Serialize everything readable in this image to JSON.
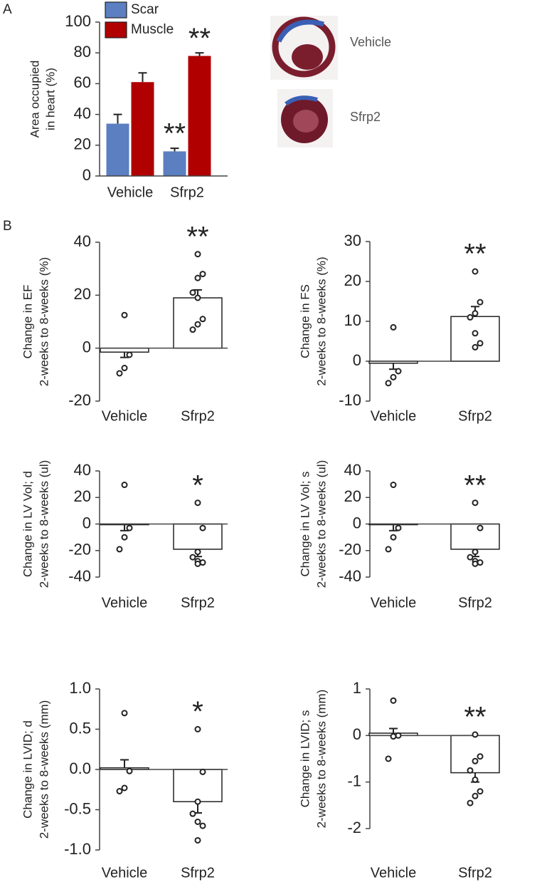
{
  "panel_labels": [
    "A",
    "B"
  ],
  "images": [
    {
      "label": "Vehicle"
    },
    {
      "label": "Sfrp2"
    }
  ],
  "chart_data": [
    {
      "type": "bar",
      "ylabel": [
        "Area occupied",
        "in heart (%)"
      ],
      "categories": [
        "Vehicle",
        "Sfrp2"
      ],
      "series": [
        {
          "name": "Scar",
          "color": "#5b7fc0",
          "values": [
            34,
            16
          ],
          "errors": [
            6,
            2
          ],
          "annotations": [
            null,
            "**"
          ]
        },
        {
          "name": "Muscle",
          "color": "#b00000",
          "values": [
            61,
            78
          ],
          "errors": [
            6,
            2
          ],
          "annotations": [
            null,
            "**"
          ]
        }
      ],
      "ylim": [
        0,
        100
      ],
      "yticks": [
        0,
        20,
        40,
        60,
        80,
        100
      ]
    },
    {
      "type": "bar",
      "ylabel": [
        "Change in EF",
        "2-weeks to 8-weeks (%)"
      ],
      "categories": [
        "Vehicle",
        "Sfrp2"
      ],
      "values": [
        -1.5,
        19
      ],
      "errors": [
        2,
        3
      ],
      "annotations": [
        null,
        "**"
      ],
      "points": [
        [
          12.5,
          -2.5,
          -7.5,
          -9.5
        ],
        [
          35.5,
          28,
          26.5,
          21,
          19,
          11,
          9,
          7
        ]
      ],
      "ylim": [
        -20,
        40
      ],
      "yticks": [
        -20,
        0,
        20,
        40
      ]
    },
    {
      "type": "bar",
      "ylabel": [
        "Change in FS",
        "2-weeks to 8-weeks (%)"
      ],
      "categories": [
        "Vehicle",
        "Sfrp2"
      ],
      "values": [
        -0.5,
        11.2
      ],
      "errors": [
        1.5,
        2.5
      ],
      "annotations": [
        null,
        "**"
      ],
      "points": [
        [
          8.5,
          -2.5,
          -4,
          -5.5
        ],
        [
          22.5,
          14.8,
          12,
          11,
          7,
          4.5,
          3.5
        ]
      ],
      "ylim": [
        -10,
        30
      ],
      "yticks": [
        -10,
        0,
        10,
        20,
        30
      ]
    },
    {
      "type": "bar",
      "ylabel": [
        "Change in LV Vol; d",
        "2-weeks to 8-weeks (ul)"
      ],
      "categories": [
        "Vehicle",
        "Sfrp2"
      ],
      "values": [
        -0.5,
        -19
      ],
      "errors": [
        4.5,
        5.5
      ],
      "annotations": [
        null,
        "*"
      ],
      "points": [
        [
          29.5,
          -3,
          -10,
          -19
        ],
        [
          16,
          -3,
          -21,
          -25,
          -28,
          -29,
          -30
        ]
      ],
      "ylim": [
        -40,
        40
      ],
      "yticks": [
        -40,
        -20,
        0,
        20,
        40
      ]
    },
    {
      "type": "bar",
      "ylabel": [
        "Change in LV Vol; s",
        "2-weeks to 8-weeks (ul)"
      ],
      "categories": [
        "Vehicle",
        "Sfrp2"
      ],
      "values": [
        -0.5,
        -19
      ],
      "errors": [
        4.5,
        5.5
      ],
      "annotations": [
        null,
        "**"
      ],
      "points": [
        [
          29.5,
          -3,
          -10,
          -19
        ],
        [
          16,
          -3,
          -21,
          -25,
          -28,
          -29,
          -30
        ]
      ],
      "ylim": [
        -40,
        40
      ],
      "yticks": [
        -40,
        -20,
        0,
        20,
        40
      ]
    },
    {
      "type": "bar",
      "ylabel": [
        "Change in LVID; d",
        "2-weeks to 8-weeks (mm)"
      ],
      "categories": [
        "Vehicle",
        "Sfrp2"
      ],
      "values": [
        0.02,
        -0.4
      ],
      "errors": [
        0.1,
        0.14
      ],
      "annotations": [
        null,
        "*"
      ],
      "points": [
        [
          0.7,
          -0.02,
          -0.23,
          -0.27
        ],
        [
          0.5,
          -0.03,
          -0.4,
          -0.55,
          -0.65,
          -0.7,
          -0.88
        ]
      ],
      "ylim": [
        -1,
        1
      ],
      "yticks": [
        {
          "value": -1,
          "label": "-1.0"
        },
        {
          "value": -0.5,
          "label": "-0.5"
        },
        {
          "value": 0,
          "label": "0.0"
        },
        {
          "value": 0.5,
          "label": "0.5"
        },
        {
          "value": 1,
          "label": "1.0"
        }
      ]
    },
    {
      "type": "bar",
      "ylabel": [
        "Change in LVID; s",
        "2-weeks to 8-weeks (mm)"
      ],
      "categories": [
        "Vehicle",
        "Sfrp2"
      ],
      "values": [
        0.05,
        -0.8
      ],
      "errors": [
        0.1,
        0.2
      ],
      "annotations": [
        null,
        "**"
      ],
      "points": [
        [
          0.75,
          0,
          -0.02,
          -0.5
        ],
        [
          0.02,
          -0.45,
          -0.55,
          -0.75,
          -0.95,
          -1.2,
          -1.3,
          -1.45
        ]
      ],
      "ylim": [
        -2,
        1
      ],
      "yticks": [
        -2,
        -1,
        0,
        1
      ]
    }
  ]
}
